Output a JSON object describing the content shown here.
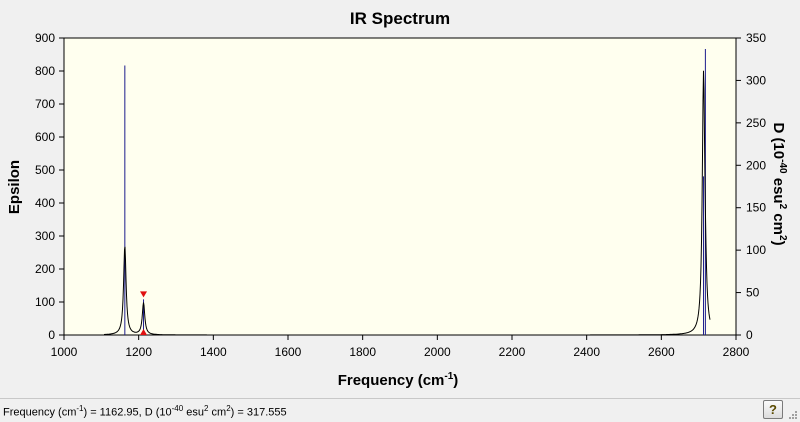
{
  "chart_data": {
    "type": "line",
    "title": "IR Spectrum",
    "xlabel": "Frequency (cm",
    "xlabel_sup": "-1",
    "xlabel_tail": ")",
    "ylabel_left": "Epsilon",
    "ylabel_right": "D (10",
    "ylabel_right_sup": "-40",
    "ylabel_right_mid": " esu",
    "ylabel_right_sup2": "2",
    "ylabel_right_mid2": " cm",
    "ylabel_right_sup3": "2",
    "ylabel_right_tail": ")",
    "xlim": [
      1000,
      2800
    ],
    "ylim_left": [
      0,
      900
    ],
    "ylim_right": [
      0,
      350
    ],
    "x_ticks": [
      1000,
      1200,
      1400,
      1600,
      1800,
      2000,
      2200,
      2400,
      2600,
      2800
    ],
    "y_left_ticks": [
      0,
      100,
      200,
      300,
      400,
      500,
      600,
      700,
      800,
      900
    ],
    "y_right_ticks": [
      0,
      50,
      100,
      150,
      200,
      250,
      300,
      350
    ],
    "spectrum_peaks": [
      {
        "frequency": 1162.95,
        "epsilon": 270,
        "half_width": 4
      },
      {
        "frequency": 1213,
        "epsilon": 97,
        "half_width": 4
      },
      {
        "frequency": 2713,
        "epsilon": 770,
        "half_width": 4
      },
      {
        "frequency": 2718,
        "epsilon": 80,
        "half_width": 4
      }
    ],
    "stick_lines": [
      {
        "frequency": 1162.95,
        "D": 317.555
      },
      {
        "frequency": 1213,
        "D": 42
      },
      {
        "frequency": 2713,
        "D": 187
      },
      {
        "frequency": 2718,
        "D": 337
      }
    ],
    "selected_marker_frequency": 1213,
    "grid": false
  },
  "status": {
    "text_a": "Frequency (cm",
    "sup_a": "-1",
    "text_b": ") = 1162.95, D (10",
    "sup_b": "-40",
    "text_c": " esu",
    "sup_c": "2",
    "text_d": " cm",
    "sup_d": "2",
    "text_e": ") = 317.555"
  },
  "colors": {
    "plot_background": "#ffffef",
    "spectrum_line": "#000000",
    "stick_line": "#1c1c8c",
    "marker": "#e01010"
  },
  "help_glyph": "?"
}
